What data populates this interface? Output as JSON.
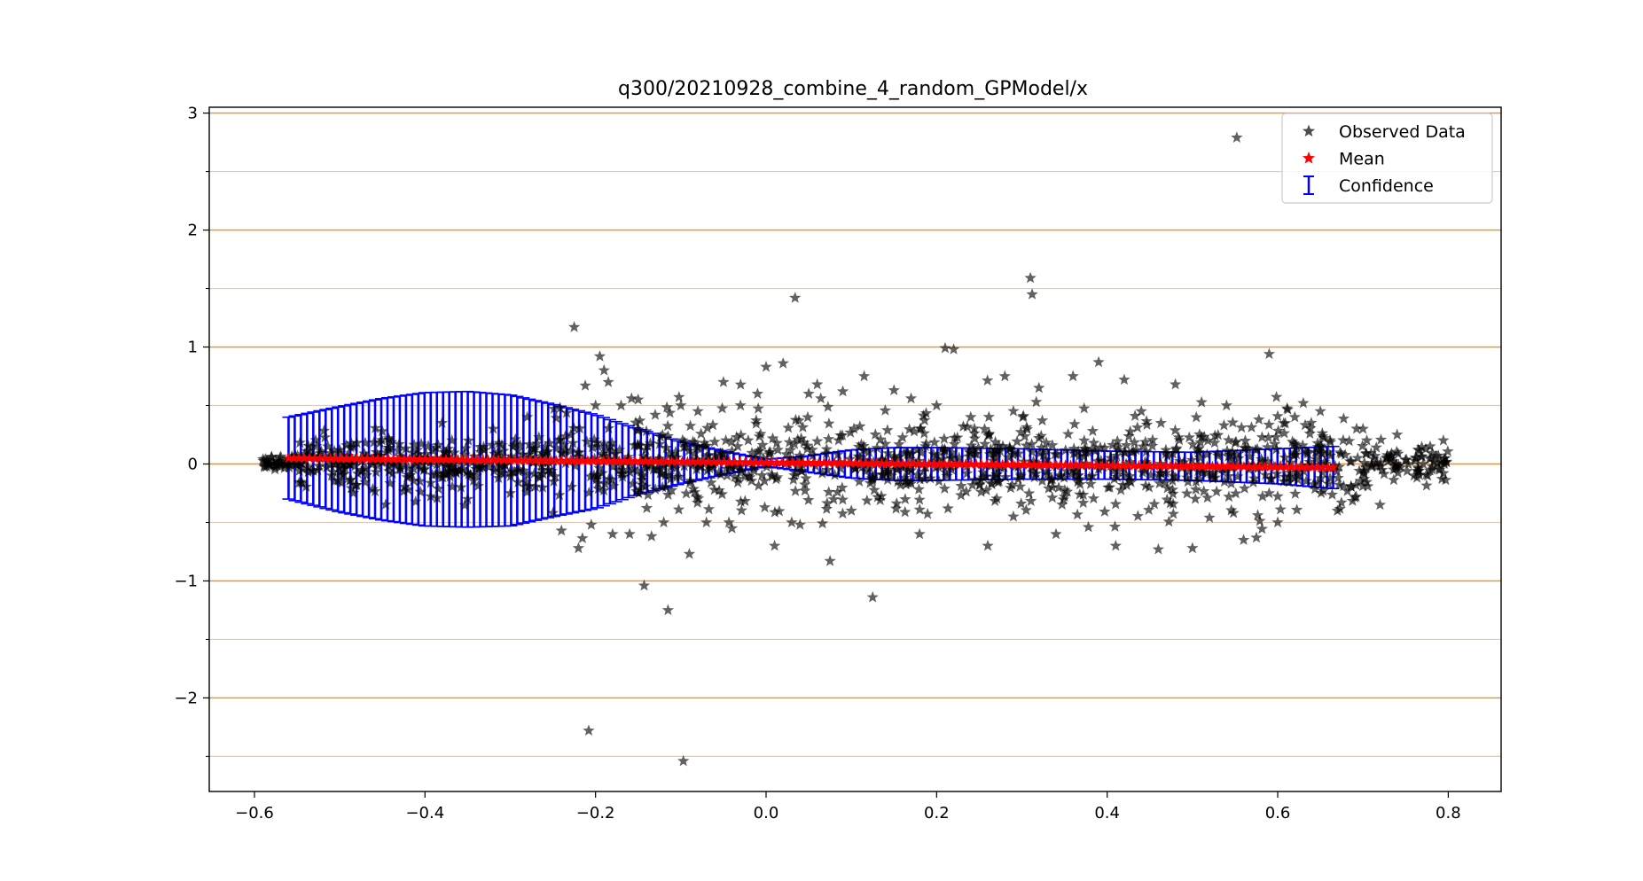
{
  "chart_data": {
    "type": "scatter",
    "title": "q300/20210928_combine_4_random_GPModel/x",
    "xlabel": "",
    "ylabel": "",
    "xlim": [
      -0.653,
      0.862
    ],
    "ylim": [
      -2.8,
      3.05
    ],
    "x_ticks": [
      -0.6,
      -0.4,
      -0.2,
      0.0,
      0.2,
      0.4,
      0.6,
      0.8
    ],
    "x_tick_labels": [
      "−0.6",
      "−0.4",
      "−0.2",
      "0.0",
      "0.2",
      "0.4",
      "0.6",
      "0.8"
    ],
    "y_ticks": [
      -2,
      -1,
      0,
      1,
      2,
      3
    ],
    "y_tick_labels": [
      "−2",
      "−1",
      "0",
      "1",
      "2",
      "3"
    ],
    "grid": {
      "major_y": [
        -2,
        -1,
        0,
        1,
        2,
        3
      ],
      "minor_y": [
        -2.5,
        -1.5,
        -0.5,
        0.5,
        1.5,
        2.5
      ],
      "major_color": "#ff8c00",
      "minor_color": "#ffc878"
    },
    "legend": {
      "placement": "top-right",
      "entries": [
        {
          "label": "Observed Data",
          "marker": "star",
          "color": "#000000"
        },
        {
          "label": "Mean",
          "marker": "star",
          "color": "#ff0000"
        },
        {
          "label": "Confidence",
          "marker": "errorbar",
          "color": "#0000ff"
        }
      ]
    },
    "colors": {
      "observed": "#000000",
      "mean": "#ff0000",
      "confidence": "#0000ff"
    },
    "series": [
      {
        "name": "Observed Data",
        "points": [
          [
            -0.59,
            0.04
          ],
          [
            -0.585,
            0.02
          ],
          [
            -0.58,
            0.06
          ],
          [
            -0.575,
            0.03
          ],
          [
            -0.57,
            0.05
          ],
          [
            -0.5,
            0.12
          ],
          [
            -0.48,
            -0.18
          ],
          [
            -0.45,
            0.28
          ],
          [
            -0.42,
            -0.22
          ],
          [
            -0.38,
            0.35
          ],
          [
            -0.35,
            -0.3
          ],
          [
            -0.32,
            0.3
          ],
          [
            -0.3,
            -0.25
          ],
          [
            -0.28,
            0.4
          ],
          [
            -0.25,
            -0.42
          ],
          [
            -0.24,
            -0.57
          ],
          [
            -0.225,
            1.17
          ],
          [
            -0.22,
            -0.72
          ],
          [
            -0.212,
            0.67
          ],
          [
            -0.208,
            -2.28
          ],
          [
            -0.205,
            -0.52
          ],
          [
            -0.2,
            0.5
          ],
          [
            -0.195,
            0.92
          ],
          [
            -0.19,
            0.8
          ],
          [
            -0.185,
            0.7
          ],
          [
            -0.18,
            -0.6
          ],
          [
            -0.17,
            0.5
          ],
          [
            -0.16,
            -0.6
          ],
          [
            -0.15,
            0.55
          ],
          [
            -0.143,
            -1.04
          ],
          [
            -0.13,
            0.42
          ],
          [
            -0.12,
            -0.5
          ],
          [
            -0.115,
            -1.25
          ],
          [
            -0.1,
            0.5
          ],
          [
            -0.097,
            -2.54
          ],
          [
            -0.09,
            -0.77
          ],
          [
            -0.08,
            0.45
          ],
          [
            -0.07,
            -0.5
          ],
          [
            -0.05,
            0.7
          ],
          [
            -0.04,
            -0.55
          ],
          [
            -0.03,
            0.5
          ],
          [
            -0.01,
            0.6
          ],
          [
            0.0,
            0.83
          ],
          [
            0.01,
            -0.7
          ],
          [
            0.02,
            0.86
          ],
          [
            0.03,
            -0.5
          ],
          [
            0.034,
            1.42
          ],
          [
            0.05,
            0.6
          ],
          [
            0.06,
            0.68
          ],
          [
            0.075,
            -0.83
          ],
          [
            0.09,
            0.62
          ],
          [
            0.1,
            -0.4
          ],
          [
            0.115,
            0.75
          ],
          [
            0.125,
            -1.14
          ],
          [
            0.15,
            0.63
          ],
          [
            0.17,
            0.56
          ],
          [
            0.18,
            -0.6
          ],
          [
            0.2,
            0.5
          ],
          [
            0.21,
            0.99
          ],
          [
            0.22,
            0.98
          ],
          [
            0.24,
            0.4
          ],
          [
            0.26,
            -0.7
          ],
          [
            0.28,
            0.75
          ],
          [
            0.29,
            -0.45
          ],
          [
            0.31,
            1.59
          ],
          [
            0.312,
            1.45
          ],
          [
            0.32,
            0.65
          ],
          [
            0.34,
            -0.6
          ],
          [
            0.36,
            0.75
          ],
          [
            0.378,
            -0.54
          ],
          [
            0.39,
            0.87
          ],
          [
            0.41,
            -0.7
          ],
          [
            0.42,
            0.72
          ],
          [
            0.44,
            0.45
          ],
          [
            0.46,
            -0.73
          ],
          [
            0.48,
            0.68
          ],
          [
            0.5,
            -0.72
          ],
          [
            0.52,
            -0.46
          ],
          [
            0.54,
            0.5
          ],
          [
            0.552,
            2.79
          ],
          [
            0.56,
            -0.65
          ],
          [
            0.575,
            -0.63
          ],
          [
            0.59,
            0.94
          ],
          [
            0.6,
            -0.5
          ],
          [
            0.62,
            0.4
          ],
          [
            0.63,
            0.52
          ],
          [
            0.65,
            0.45
          ],
          [
            0.67,
            -0.4
          ],
          [
            0.7,
            0.3
          ],
          [
            0.72,
            -0.35
          ],
          [
            0.74,
            0.25
          ],
          [
            0.76,
            -0.1
          ],
          [
            0.78,
            0.05
          ],
          [
            0.79,
            -0.05
          ],
          [
            0.795,
            0.0
          ]
        ]
      },
      {
        "name": "Mean",
        "x_range": [
          -0.56,
          0.665
        ],
        "y_range": [
          0.05,
          -0.03
        ]
      },
      {
        "name": "Confidence",
        "x_range": [
          -0.56,
          0.665
        ],
        "band": [
          [
            -0.56,
            0.05,
            0.35
          ],
          [
            -0.5,
            0.04,
            0.45
          ],
          [
            -0.45,
            0.04,
            0.52
          ],
          [
            -0.4,
            0.04,
            0.57
          ],
          [
            -0.35,
            0.04,
            0.58
          ],
          [
            -0.3,
            0.03,
            0.56
          ],
          [
            -0.25,
            0.03,
            0.48
          ],
          [
            -0.2,
            0.02,
            0.4
          ],
          [
            -0.15,
            0.02,
            0.28
          ],
          [
            -0.1,
            0.01,
            0.18
          ],
          [
            -0.05,
            0.01,
            0.1
          ],
          [
            0.0,
            0.01,
            0.03
          ],
          [
            0.05,
            0.0,
            0.07
          ],
          [
            0.1,
            0.0,
            0.12
          ],
          [
            0.15,
            0.0,
            0.14
          ],
          [
            0.2,
            0.0,
            0.14
          ],
          [
            0.3,
            0.0,
            0.13
          ],
          [
            0.4,
            -0.01,
            0.12
          ],
          [
            0.5,
            -0.02,
            0.12
          ],
          [
            0.6,
            -0.02,
            0.15
          ],
          [
            0.665,
            -0.03,
            0.18
          ]
        ]
      }
    ]
  }
}
